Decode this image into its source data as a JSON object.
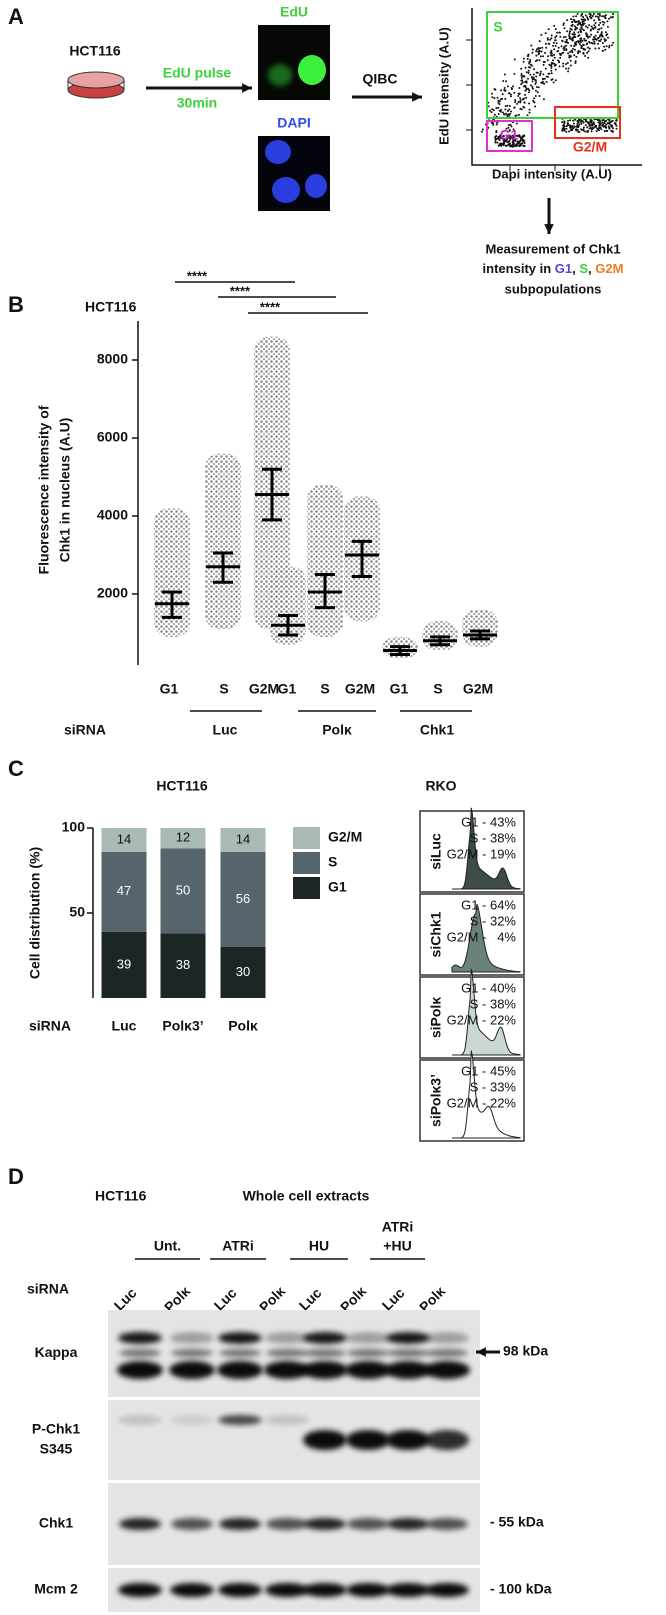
{
  "panel_labels": [
    "A",
    "B",
    "C",
    "D"
  ],
  "panel_a": {
    "cell_line": "HCT116",
    "pulse": "EdU pulse",
    "pulse_time": "30min",
    "edu": "EdU",
    "dapi": "DAPI",
    "method": "QIBC",
    "y_label": "EdU intensity (A.U)",
    "x_label": "Dapi intensity (A.U)",
    "gates": [
      "S",
      "G1",
      "G2/M"
    ],
    "measurement_top": "Measurement of Chk1",
    "measurement_mid": [
      "intensity in ",
      "G1",
      ", ",
      "S",
      ", ",
      "G2M"
    ],
    "measurement_bottom": "subpopulations"
  },
  "chart_data": [
    {
      "type": "dotplot",
      "title": "HCT116",
      "y_label": [
        "Fluorescence intensity of",
        "Chk1 in nucleus (A.U)"
      ],
      "categories": [
        "G1",
        "S",
        "G2M",
        "G1",
        "S",
        "G2M",
        "G1",
        "S",
        "G2M"
      ],
      "groups": [
        "Luc",
        "Polκ",
        "Chk1"
      ],
      "group_title": "siRNA",
      "median": [
        1750,
        2700,
        4550,
        1200,
        2050,
        3000,
        550,
        800,
        950
      ],
      "q1": [
        1400,
        2300,
        3900,
        950,
        1650,
        2450,
        450,
        700,
        850
      ],
      "q3": [
        2050,
        3050,
        5200,
        1450,
        2500,
        3350,
        650,
        900,
        1050
      ],
      "min": [
        900,
        1100,
        1100,
        700,
        900,
        1300,
        350,
        550,
        650
      ],
      "max": [
        4200,
        5600,
        8600,
        2700,
        4800,
        4500,
        900,
        1300,
        1600
      ],
      "ylim": [
        0,
        9000
      ],
      "yticks": [
        2000,
        4000,
        6000,
        8000
      ],
      "significance": [
        "****",
        "****",
        "****"
      ],
      "color": "#8c8c8c"
    },
    {
      "type": "stacked_bar",
      "title": "HCT116",
      "y_label": "Cell distribution (%)",
      "categories": [
        "Luc",
        "Polκ3’",
        "Polκ"
      ],
      "category_title": "siRNA",
      "series": [
        {
          "name": "G1",
          "color": "#1c2626",
          "values": [
            39,
            38,
            30
          ]
        },
        {
          "name": "S",
          "color": "#56646b",
          "values": [
            47,
            50,
            56
          ]
        },
        {
          "name": "G2/M",
          "color": "#a9bab6",
          "values": [
            14,
            12,
            14
          ]
        }
      ],
      "ylim": [
        0,
        100
      ],
      "yticks": [
        50,
        100
      ]
    }
  ],
  "rko": {
    "title": "RKO",
    "panels": [
      {
        "label": "siLuc",
        "lines": [
          "G1 - 43%",
          "S - 38%",
          "G2/M - 19%"
        ]
      },
      {
        "label": "siChk1",
        "lines": [
          "G1 - 64%",
          "S - 32%",
          "G2/M -   4%"
        ]
      },
      {
        "label": "siPolκ",
        "lines": [
          "G1 - 40%",
          "S - 38%",
          "G2/M - 22%"
        ]
      },
      {
        "label": "siPolκ3’",
        "lines": [
          "G1 - 45%",
          "S - 33%",
          "G2/M - 22%"
        ]
      }
    ]
  },
  "panel_d": {
    "cell_line": "HCT116",
    "title": "Whole cell extracts",
    "treatments": [
      [
        "Unt."
      ],
      [
        "ATRi"
      ],
      [
        "HU"
      ],
      [
        "ATRi",
        "+HU"
      ]
    ],
    "row_title": "siRNA",
    "lanes": [
      "Luc",
      "Polκ",
      "Luc",
      "Polκ",
      "Luc",
      "Polκ",
      "Luc",
      "Polκ"
    ],
    "blots": [
      [
        "Kappa"
      ],
      [
        "P-Chk1",
        "S345"
      ],
      [
        "Chk1"
      ],
      [
        "Mcm 2"
      ]
    ],
    "markers": [
      "98 kDa",
      "- 55 kDa",
      "- 100 kDa"
    ]
  }
}
